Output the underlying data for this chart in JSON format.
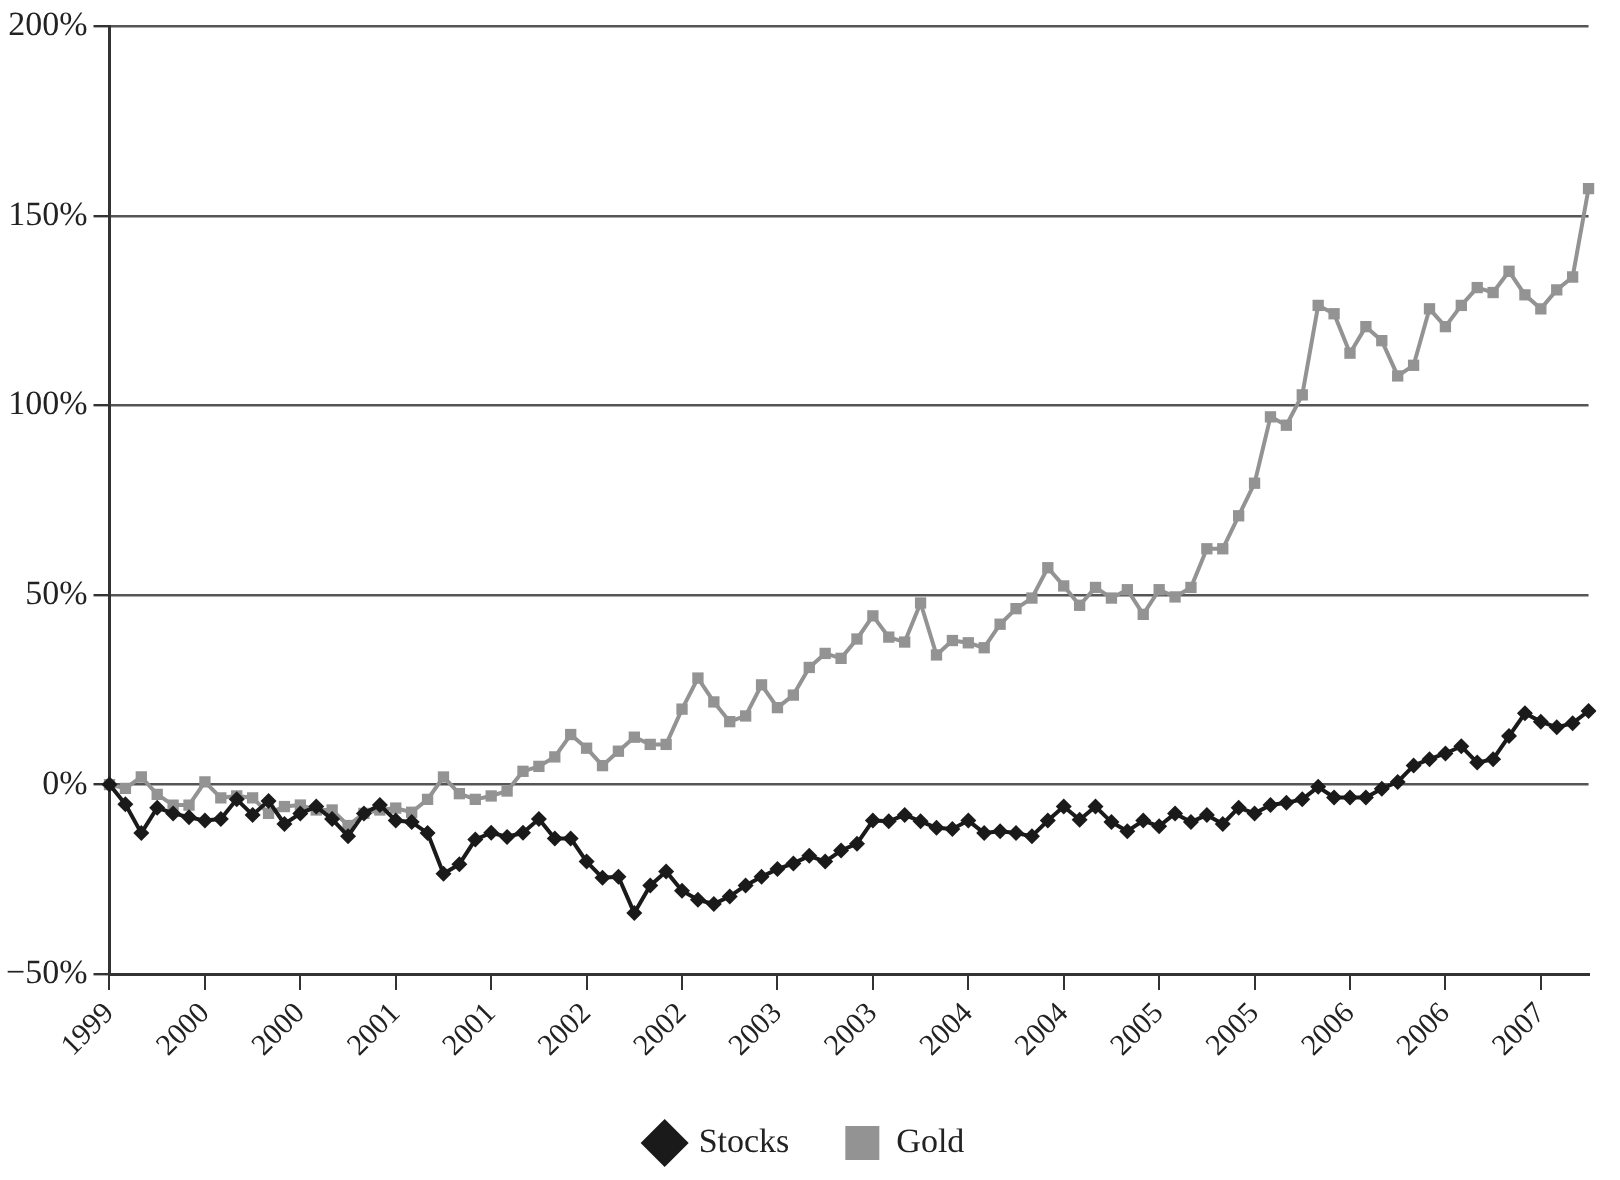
{
  "chart_data": {
    "type": "line",
    "categories": [
      "1999",
      null,
      null,
      null,
      null,
      null,
      "2000",
      null,
      null,
      null,
      null,
      null,
      "2000",
      null,
      null,
      null,
      null,
      null,
      "2001",
      null,
      null,
      null,
      null,
      null,
      "2001",
      null,
      null,
      null,
      null,
      null,
      "2002",
      null,
      null,
      null,
      null,
      null,
      "2002",
      null,
      null,
      null,
      null,
      null,
      "2003",
      null,
      null,
      null,
      null,
      null,
      "2003",
      null,
      null,
      null,
      null,
      null,
      "2004",
      null,
      null,
      null,
      null,
      null,
      "2004",
      null,
      null,
      null,
      null,
      null,
      "2005",
      null,
      null,
      null,
      null,
      null,
      "2005",
      null,
      null,
      null,
      null,
      null,
      "2006",
      null,
      null,
      null,
      null,
      null,
      "2006",
      null,
      null,
      null,
      null,
      null,
      "2007",
      null,
      null,
      null
    ],
    "series": [
      {
        "name": "Stocks",
        "color": "#1a1a1a",
        "marker": "diamond",
        "values": [
          0,
          -5.2,
          -12.8,
          -6.1,
          -7.6,
          -8.6,
          -9.5,
          -9.1,
          -3.9,
          -8,
          -4.3,
          -10.4,
          -7.6,
          -5.8,
          -9.1,
          -13.6,
          -7.6,
          -5.4,
          -9.5,
          -9.9,
          -12.8,
          -23.5,
          -21,
          -14.5,
          -12.7,
          -13.8,
          -12.7,
          -9.1,
          -14.2,
          -14.2,
          -20.3,
          -24.6,
          -24.3,
          -33.9,
          -26.6,
          -22.9,
          -28,
          -30.4,
          -31.5,
          -29.5,
          -26.6,
          -24.3,
          -22.3,
          -20.8,
          -18.8,
          -20.3,
          -17.4,
          -15.6,
          -9.5,
          -9.7,
          -8,
          -9.7,
          -11.4,
          -11.7,
          -9.5,
          -12.8,
          -12.3,
          -12.8,
          -13.6,
          -9.5,
          -5.8,
          -9.3,
          -5.8,
          -9.9,
          -12.3,
          -9.5,
          -11,
          -7.6,
          -9.9,
          -8,
          -10.4,
          -6.1,
          -7.6,
          -5.4,
          -4.8,
          -3.9,
          -0.6,
          -3.4,
          -3.4,
          -3.4,
          -1.1,
          0.7,
          5,
          6.7,
          8.2,
          10.1,
          5.8,
          6.7,
          12.8,
          18.8,
          16.6,
          15.1,
          16.2,
          19.4
        ]
      },
      {
        "name": "Gold",
        "color": "#939393",
        "marker": "square",
        "values": [
          0,
          -1,
          2,
          -2.6,
          -5.4,
          -5.4,
          0.7,
          -3.5,
          -3,
          -3.5,
          -7.6,
          -5.8,
          -5.4,
          -6.7,
          -6.7,
          -10.8,
          -7.6,
          -6.7,
          -6.2,
          -7.3,
          -3.9,
          2,
          -2.4,
          -3.9,
          -3,
          -1.7,
          3.5,
          4.8,
          7.3,
          13.2,
          9.6,
          5,
          8.8,
          12.5,
          10.6,
          10.6,
          19.9,
          28.1,
          21.8,
          16.6,
          18.1,
          26.3,
          20.3,
          23.6,
          30.9,
          34.6,
          33.3,
          38.4,
          44.5,
          38.9,
          37.6,
          47.9,
          34.2,
          38,
          37.4,
          36.1,
          42.3,
          46.4,
          49.2,
          57.2,
          52.4,
          47.3,
          52,
          49.2,
          51.4,
          44.9,
          51.4,
          49.5,
          52,
          62.2,
          62.2,
          70.9,
          79.5,
          97,
          94.8,
          102.8,
          126.4,
          124.2,
          113.8,
          120.8,
          117.1,
          107.8,
          110.6,
          125.5,
          120.8,
          126.4,
          131.1,
          129.8,
          135.4,
          129.2,
          125.5,
          130.5,
          133.9,
          157.2
        ]
      }
    ],
    "ylim": [
      -50,
      200
    ],
    "yticks": [
      {
        "value": -50,
        "label": "−50%"
      },
      {
        "value": 0,
        "label": "0%"
      },
      {
        "value": 50,
        "label": "50%"
      },
      {
        "value": 100,
        "label": "100%"
      },
      {
        "value": 150,
        "label": "150%"
      },
      {
        "value": 200,
        "label": "200%"
      }
    ],
    "grid": "y",
    "legend": "bottom",
    "line_style": "solid"
  }
}
